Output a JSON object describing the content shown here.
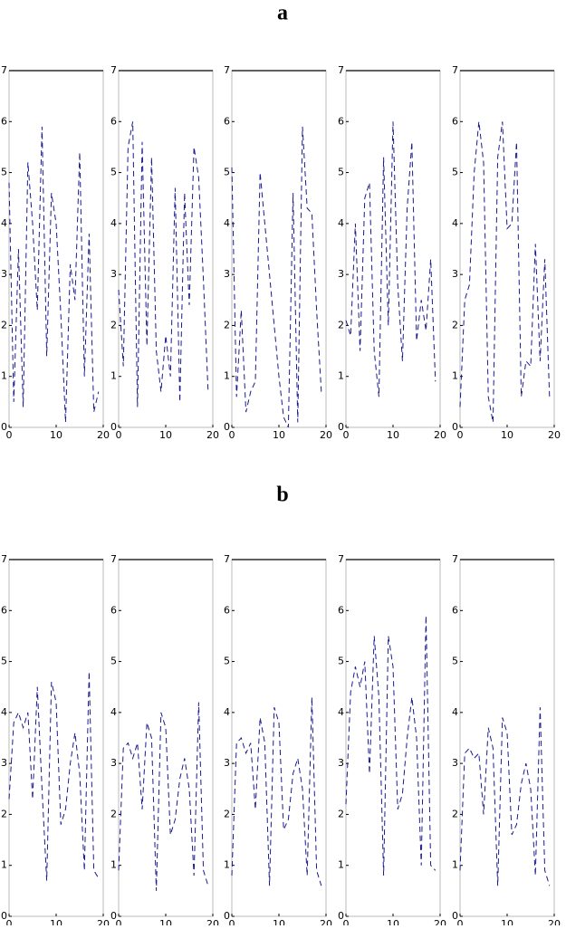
{
  "figure_labels": [
    "a",
    "b"
  ],
  "chart_data": [
    {
      "type": "line",
      "x": [
        0,
        1,
        2,
        3,
        4,
        5,
        6,
        7,
        8,
        9,
        10,
        11,
        12,
        13,
        14,
        15,
        16,
        17,
        18,
        19
      ],
      "series": [
        {
          "color": "#1a1a8c",
          "values": [
            4.8,
            0.5,
            3.5,
            0.4,
            5.2,
            4.0,
            2.3,
            5.9,
            1.4,
            4.6,
            4.0,
            2.2,
            0.1,
            3.2,
            2.5,
            5.4,
            1.0,
            3.8,
            0.3,
            0.7
          ]
        }
      ],
      "xlim": [
        0,
        20
      ],
      "ylim": [
        0,
        7
      ],
      "xticks": [
        0,
        10,
        20
      ],
      "yticks": [
        0,
        1,
        2,
        3,
        4,
        5,
        6,
        7
      ]
    },
    {
      "type": "line",
      "x": [
        0,
        1,
        2,
        3,
        4,
        5,
        6,
        7,
        8,
        9,
        10,
        11,
        12,
        13,
        14,
        15,
        16,
        17,
        18,
        19
      ],
      "series": [
        {
          "color": "#1a1a8c",
          "values": [
            2.7,
            1.2,
            5.5,
            6.0,
            0.4,
            5.6,
            1.6,
            5.3,
            1.5,
            0.7,
            1.8,
            1.0,
            4.7,
            0.5,
            4.6,
            2.4,
            5.5,
            4.9,
            2.9,
            0.7
          ]
        }
      ],
      "xlim": [
        0,
        20
      ],
      "ylim": [
        0,
        7
      ],
      "xticks": [
        0,
        10,
        20
      ],
      "yticks": [
        0,
        1,
        2,
        3,
        4,
        5,
        6,
        7
      ]
    },
    {
      "type": "line",
      "x": [
        0,
        1,
        2,
        3,
        4,
        5,
        6,
        7,
        8,
        9,
        10,
        11,
        12,
        13,
        14,
        15,
        16,
        17,
        18,
        19
      ],
      "series": [
        {
          "color": "#1a1a8c",
          "values": [
            5.1,
            0.6,
            2.3,
            0.3,
            0.7,
            0.9,
            5.0,
            4.0,
            3.0,
            2.0,
            1.0,
            0.2,
            0.0,
            4.6,
            0.1,
            5.9,
            4.3,
            4.2,
            2.3,
            0.7
          ]
        }
      ],
      "xlim": [
        0,
        20
      ],
      "ylim": [
        0,
        7
      ],
      "xticks": [
        0,
        10,
        20
      ],
      "yticks": [
        0,
        1,
        2,
        3,
        4,
        5,
        6,
        7
      ]
    },
    {
      "type": "line",
      "x": [
        0,
        1,
        2,
        3,
        4,
        5,
        6,
        7,
        8,
        9,
        10,
        11,
        12,
        13,
        14,
        15,
        16,
        17,
        18,
        19
      ],
      "series": [
        {
          "color": "#1a1a8c",
          "values": [
            2.1,
            1.8,
            4.0,
            1.5,
            4.5,
            4.8,
            1.5,
            0.6,
            5.3,
            2.0,
            6.0,
            2.8,
            1.3,
            4.3,
            5.6,
            1.7,
            2.5,
            1.9,
            3.3,
            0.9
          ]
        }
      ],
      "xlim": [
        0,
        20
      ],
      "ylim": [
        0,
        7
      ],
      "xticks": [
        0,
        10,
        20
      ],
      "yticks": [
        0,
        1,
        2,
        3,
        4,
        5,
        6,
        7
      ]
    },
    {
      "type": "line",
      "x": [
        0,
        1,
        2,
        3,
        4,
        5,
        6,
        7,
        8,
        9,
        10,
        11,
        12,
        13,
        14,
        15,
        16,
        17,
        18,
        19
      ],
      "series": [
        {
          "color": "#1a1a8c",
          "values": [
            0.4,
            2.5,
            2.8,
            5.0,
            6.0,
            5.2,
            0.6,
            0.1,
            5.3,
            6.0,
            3.9,
            4.0,
            5.6,
            0.6,
            1.3,
            1.2,
            3.6,
            1.3,
            3.3,
            0.6
          ]
        }
      ],
      "xlim": [
        0,
        20
      ],
      "ylim": [
        0,
        7
      ],
      "xticks": [
        0,
        10,
        20
      ],
      "yticks": [
        0,
        1,
        2,
        3,
        4,
        5,
        6,
        7
      ]
    },
    {
      "type": "line",
      "x": [
        0,
        1,
        2,
        3,
        4,
        5,
        6,
        7,
        8,
        9,
        10,
        11,
        12,
        13,
        14,
        15,
        16,
        17,
        18,
        19
      ],
      "series": [
        {
          "color": "#1a1a8c",
          "values": [
            2.3,
            3.8,
            4.0,
            3.7,
            4.0,
            2.3,
            4.5,
            2.5,
            0.7,
            4.6,
            4.2,
            1.8,
            2.1,
            3.0,
            3.6,
            2.8,
            0.9,
            4.8,
            0.9,
            0.75
          ]
        }
      ],
      "xlim": [
        0,
        20
      ],
      "ylim": [
        0,
        7
      ],
      "xticks": [
        0,
        10,
        20
      ],
      "yticks": [
        0,
        1,
        2,
        3,
        4,
        5,
        6,
        7
      ]
    },
    {
      "type": "line",
      "x": [
        0,
        1,
        2,
        3,
        4,
        5,
        6,
        7,
        8,
        9,
        10,
        11,
        12,
        13,
        14,
        15,
        16,
        17,
        18,
        19
      ],
      "series": [
        {
          "color": "#1a1a8c",
          "values": [
            0.9,
            3.3,
            3.4,
            3.1,
            3.4,
            2.1,
            3.8,
            3.5,
            0.5,
            4.0,
            3.7,
            1.6,
            1.9,
            2.7,
            3.1,
            2.5,
            0.8,
            4.2,
            0.9,
            0.6
          ]
        }
      ],
      "xlim": [
        0,
        20
      ],
      "ylim": [
        0,
        7
      ],
      "xticks": [
        0,
        10,
        20
      ],
      "yticks": [
        0,
        1,
        2,
        3,
        4,
        5,
        6,
        7
      ]
    },
    {
      "type": "line",
      "x": [
        0,
        1,
        2,
        3,
        4,
        5,
        6,
        7,
        8,
        9,
        10,
        11,
        12,
        13,
        14,
        15,
        16,
        17,
        18,
        19
      ],
      "series": [
        {
          "color": "#1a1a8c",
          "values": [
            0.8,
            3.4,
            3.5,
            3.2,
            3.4,
            2.1,
            3.9,
            3.4,
            0.6,
            4.1,
            3.8,
            1.7,
            1.9,
            2.8,
            3.1,
            2.5,
            0.8,
            4.3,
            0.9,
            0.6
          ]
        }
      ],
      "xlim": [
        0,
        20
      ],
      "ylim": [
        0,
        7
      ],
      "xticks": [
        0,
        10,
        20
      ],
      "yticks": [
        0,
        1,
        2,
        3,
        4,
        5,
        6,
        7
      ]
    },
    {
      "type": "line",
      "x": [
        0,
        1,
        2,
        3,
        4,
        5,
        6,
        7,
        8,
        9,
        10,
        11,
        12,
        13,
        14,
        15,
        16,
        17,
        18,
        19
      ],
      "series": [
        {
          "color": "#1a1a8c",
          "values": [
            2.2,
            4.4,
            4.9,
            4.5,
            5.0,
            2.8,
            5.5,
            4.3,
            0.8,
            5.5,
            4.9,
            2.1,
            2.4,
            3.5,
            4.3,
            3.5,
            1.0,
            5.9,
            1.0,
            0.9
          ]
        }
      ],
      "xlim": [
        0,
        20
      ],
      "ylim": [
        0,
        7
      ],
      "xticks": [
        0,
        10,
        20
      ],
      "yticks": [
        0,
        1,
        2,
        3,
        4,
        5,
        6,
        7
      ]
    },
    {
      "type": "line",
      "x": [
        0,
        1,
        2,
        3,
        4,
        5,
        6,
        7,
        8,
        9,
        10,
        11,
        12,
        13,
        14,
        15,
        16,
        17,
        18,
        19
      ],
      "series": [
        {
          "color": "#1a1a8c",
          "values": [
            0.9,
            3.2,
            3.3,
            3.1,
            3.2,
            2.0,
            3.7,
            3.3,
            0.6,
            3.9,
            3.6,
            1.6,
            1.8,
            2.6,
            3.0,
            2.5,
            0.8,
            4.1,
            0.9,
            0.6
          ]
        }
      ],
      "xlim": [
        0,
        20
      ],
      "ylim": [
        0,
        7
      ],
      "xticks": [
        0,
        10,
        20
      ],
      "yticks": [
        0,
        1,
        2,
        3,
        4,
        5,
        6,
        7
      ]
    }
  ]
}
